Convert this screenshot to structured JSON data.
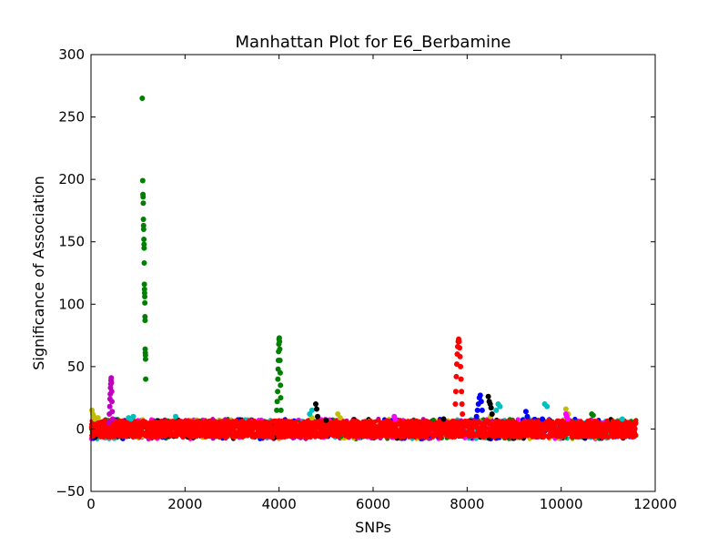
{
  "chart_data": {
    "type": "scatter",
    "title": "Manhattan Plot for E6_Berbamine",
    "xlabel": "SNPs",
    "ylabel": "Significance of Association",
    "xlim": [
      0,
      12000
    ],
    "ylim": [
      -50,
      300
    ],
    "xticks": [
      0,
      2000,
      4000,
      6000,
      8000,
      10000,
      12000
    ],
    "yticks": [
      -50,
      0,
      50,
      100,
      150,
      200,
      250,
      300
    ],
    "xtick_labels": [
      "0",
      "2000",
      "4000",
      "6000",
      "8000",
      "10000",
      "12000"
    ],
    "ytick_labels": [
      "−50",
      "0",
      "50",
      "100",
      "150",
      "200",
      "250",
      "300"
    ],
    "grid": false,
    "legend": "none",
    "baseline_band": {
      "x_range": [
        0,
        11600
      ],
      "y_range": [
        -8,
        8
      ],
      "colors": [
        "#ff0000",
        "#ff00ff",
        "#0000ff",
        "#000000",
        "#00bfbf",
        "#bfbf00",
        "#008000",
        "#bf00bf"
      ]
    },
    "series": [
      {
        "color": "#bf00bf",
        "points": [
          [
            380,
            5
          ],
          [
            390,
            12
          ],
          [
            400,
            18
          ],
          [
            405,
            24
          ],
          [
            410,
            28
          ],
          [
            415,
            33
          ],
          [
            420,
            36
          ],
          [
            425,
            39
          ],
          [
            430,
            41
          ],
          [
            435,
            37
          ],
          [
            440,
            30
          ],
          [
            445,
            22
          ],
          [
            450,
            14
          ],
          [
            460,
            8
          ]
        ]
      },
      {
        "color": "#bfbf00",
        "points": [
          [
            20,
            15
          ],
          [
            40,
            12
          ],
          [
            60,
            10
          ],
          [
            80,
            8
          ],
          [
            150,
            9
          ],
          [
            4700,
            9
          ],
          [
            5250,
            12
          ],
          [
            5300,
            9
          ],
          [
            8500,
            10
          ],
          [
            10100,
            16
          ],
          [
            10150,
            12
          ]
        ]
      },
      {
        "color": "#00bfbf",
        "points": [
          [
            800,
            9
          ],
          [
            850,
            8
          ],
          [
            900,
            10
          ],
          [
            1800,
            10
          ],
          [
            4650,
            12
          ],
          [
            4700,
            15
          ],
          [
            8620,
            15
          ],
          [
            8660,
            20
          ],
          [
            8700,
            18
          ],
          [
            9650,
            20
          ],
          [
            9700,
            18
          ],
          [
            11300,
            8
          ]
        ]
      },
      {
        "color": "#008000",
        "points": [
          [
            1090,
            265
          ],
          [
            1100,
            199
          ],
          [
            1105,
            188
          ],
          [
            1108,
            186
          ],
          [
            1112,
            181
          ],
          [
            1115,
            168
          ],
          [
            1118,
            163
          ],
          [
            1120,
            160
          ],
          [
            1125,
            152
          ],
          [
            1128,
            148
          ],
          [
            1130,
            145
          ],
          [
            1132,
            133
          ],
          [
            1135,
            116
          ],
          [
            1138,
            112
          ],
          [
            1140,
            109
          ],
          [
            1143,
            106
          ],
          [
            1145,
            101
          ],
          [
            1148,
            90
          ],
          [
            1150,
            87
          ],
          [
            1152,
            64
          ],
          [
            1155,
            61
          ],
          [
            1158,
            59
          ],
          [
            1160,
            56
          ],
          [
            1163,
            40
          ],
          [
            3950,
            15
          ],
          [
            3960,
            22
          ],
          [
            3970,
            30
          ],
          [
            3975,
            40
          ],
          [
            3980,
            48
          ],
          [
            3985,
            55
          ],
          [
            3990,
            62
          ],
          [
            3995,
            68
          ],
          [
            4000,
            72
          ],
          [
            4005,
            73
          ],
          [
            4010,
            70
          ],
          [
            4015,
            64
          ],
          [
            4020,
            55
          ],
          [
            4025,
            45
          ],
          [
            4030,
            35
          ],
          [
            4035,
            25
          ],
          [
            4040,
            15
          ],
          [
            10650,
            12
          ],
          [
            10680,
            11
          ]
        ]
      },
      {
        "color": "#000000",
        "points": [
          [
            4780,
            20
          ],
          [
            4800,
            16
          ],
          [
            4820,
            10
          ],
          [
            5000,
            7
          ],
          [
            7500,
            8
          ],
          [
            8450,
            26
          ],
          [
            8470,
            22
          ],
          [
            8490,
            20
          ],
          [
            8510,
            17
          ],
          [
            8530,
            12
          ]
        ]
      },
      {
        "color": "#ff0000",
        "points": [
          [
            7750,
            20
          ],
          [
            7760,
            30
          ],
          [
            7770,
            42
          ],
          [
            7780,
            52
          ],
          [
            7790,
            60
          ],
          [
            7800,
            66
          ],
          [
            7810,
            70
          ],
          [
            7820,
            72
          ],
          [
            7830,
            70
          ],
          [
            7840,
            65
          ],
          [
            7850,
            58
          ],
          [
            7860,
            50
          ],
          [
            7870,
            40
          ],
          [
            7880,
            30
          ],
          [
            7890,
            20
          ],
          [
            7900,
            12
          ]
        ]
      },
      {
        "color": "#0000ff",
        "points": [
          [
            8200,
            10
          ],
          [
            8220,
            15
          ],
          [
            8240,
            20
          ],
          [
            8260,
            25
          ],
          [
            8280,
            27
          ],
          [
            8300,
            22
          ],
          [
            8320,
            15
          ],
          [
            9250,
            14
          ],
          [
            9280,
            10
          ],
          [
            9600,
            8
          ]
        ]
      },
      {
        "color": "#ff00ff",
        "points": [
          [
            6450,
            10
          ],
          [
            6470,
            8
          ],
          [
            10100,
            12
          ],
          [
            10120,
            10
          ],
          [
            10140,
            8
          ]
        ]
      }
    ]
  }
}
